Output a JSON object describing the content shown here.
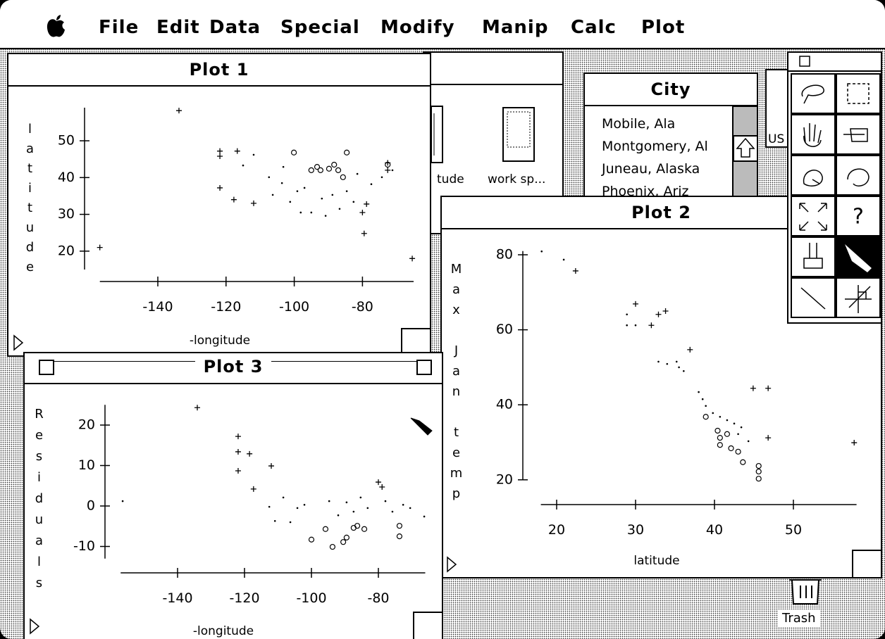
{
  "menu": [
    "File",
    "Edit",
    "Data",
    "Special",
    "Modify",
    "Manip",
    "Calc",
    "Plot"
  ],
  "background_window": {
    "icons": [
      "tude",
      "work sp..."
    ]
  },
  "city_window": {
    "title": "City",
    "items": [
      "Mobile, Ala",
      "Montgomery, Al",
      "Juneau, Alaska",
      "Phoenix, Ariz"
    ]
  },
  "us_window": {
    "label": "US"
  },
  "palette": {
    "help": "?"
  },
  "trash": "Trash",
  "chart_data": [
    {
      "type": "scatter",
      "title": "Plot 1",
      "x_label": "-longitude",
      "y_label": "latitude",
      "xlim": [
        -157,
        -65
      ],
      "ylim": [
        15,
        59
      ],
      "xticks": [
        -140,
        -120,
        -100,
        -80
      ],
      "yticks": [
        20,
        30,
        40,
        50
      ],
      "series": [
        {
          "marker": "plus",
          "color": "#000000",
          "x": [
            -133.8,
            -121.8,
            -121.8,
            -116.7,
            -121.8,
            -117.7,
            -111.9,
            -78.8,
            -80,
            -79.5,
            -157,
            -65.4,
            -72.6,
            -72.6
          ],
          "values": [
            58.2,
            47.2,
            45.8,
            47.2,
            37.2,
            34,
            33,
            32.8,
            30.5,
            24.8,
            21,
            18,
            44,
            42
          ]
        },
        {
          "marker": "circle",
          "color": "#000000",
          "x": [
            -100.1,
            -95,
            -93.3,
            -92.3,
            -89.8,
            -88.3,
            -87.1,
            -85.7,
            -84.6,
            -72.6
          ],
          "values": [
            46.8,
            42,
            42.9,
            42,
            42.4,
            43.5,
            42,
            40.1,
            46.8,
            43.5
          ]
        },
        {
          "marker": "dot",
          "color": "#000000",
          "x": [
            -111.9,
            -115,
            -107.4,
            -103.2,
            -103.6,
            -99.1,
            -97,
            -91.9,
            -88.8,
            -84.6,
            -81.5,
            -77.4,
            -74.3,
            -71.2,
            -95,
            -90.8,
            -86.7,
            -82.6,
            -106.3,
            -101.2,
            -98.1
          ],
          "values": [
            46.2,
            43.3,
            40.1,
            42.9,
            38.5,
            36.3,
            37.2,
            34.3,
            35.3,
            36.3,
            41,
            38.2,
            40.1,
            42,
            30.5,
            29.6,
            31.5,
            33.4,
            35.3,
            33.4,
            30.5
          ]
        }
      ]
    },
    {
      "type": "scatter",
      "title": "Plot 2",
      "x_label": "latitude",
      "y_label": "Max Jan temp",
      "xlim": [
        18,
        58
      ],
      "ylim": [
        20,
        81
      ],
      "xticks": [
        20,
        30,
        40,
        50
      ],
      "yticks": [
        20,
        40,
        60,
        80
      ],
      "series": [
        {
          "marker": "plus",
          "color": "#000000",
          "x": [
            22.4,
            30,
            32,
            32.9,
            33.8,
            36.9,
            44.9,
            46.8,
            46.8,
            57.7
          ],
          "values": [
            75.7,
            66.9,
            61.2,
            64.1,
            65,
            54.7,
            44.4,
            44.4,
            31.2,
            29.9
          ]
        },
        {
          "marker": "dot",
          "color": "#000000",
          "x": [
            18.1,
            20.9,
            28.9,
            28.9,
            30,
            32.9,
            34,
            35.2,
            35.5,
            36.1,
            38,
            38.5,
            38.9,
            39.8,
            40.7,
            41.6,
            42.5,
            43.4,
            44.3,
            43
          ],
          "values": [
            80.9,
            78.7,
            64.1,
            61.2,
            61.2,
            51.5,
            50.9,
            51.5,
            50,
            49,
            43.4,
            41.5,
            39.7,
            37.8,
            36.8,
            35.9,
            35,
            34,
            30.3,
            32.2
          ]
        },
        {
          "marker": "circle",
          "color": "#000000",
          "x": [
            38.9,
            40.4,
            40.7,
            41.6,
            40.7,
            42.1,
            43,
            43.6,
            45.6,
            45.6,
            45.6
          ],
          "values": [
            36.8,
            33.1,
            31.2,
            32.2,
            29.3,
            28.4,
            27.5,
            24.7,
            23.7,
            20.3,
            22.2
          ]
        }
      ]
    },
    {
      "type": "scatter",
      "title": "Plot 3",
      "x_label": "-longitude",
      "y_label": "Residuals",
      "xlim": [
        -157,
        -66
      ],
      "ylim": [
        -13,
        25
      ],
      "xticks": [
        -140,
        -120,
        -100,
        -80
      ],
      "yticks": [
        -10,
        0,
        10,
        20
      ],
      "series": [
        {
          "marker": "plus",
          "color": "#000000",
          "x": [
            -134.1,
            -121.9,
            -121.9,
            -118.5,
            -121.9,
            -112,
            -117.3,
            -80,
            -78.9
          ],
          "values": [
            24.3,
            17.2,
            13.4,
            12.9,
            8.7,
            9.9,
            4.2,
            5.9,
            4.7
          ]
        },
        {
          "marker": "dot",
          "color": "#000000",
          "x": [
            -156.4,
            -112.6,
            -110.9,
            -104.2,
            -102.1,
            -94.7,
            -92,
            -89.5,
            -87.4,
            -85.3,
            -83.2,
            -77.9,
            -75.8,
            -72.6,
            -70.5,
            -66.3,
            -108.4,
            -106.3
          ],
          "values": [
            1.2,
            -0.2,
            -3.7,
            -0.5,
            0.3,
            1.2,
            -2.3,
            0.9,
            -1.4,
            2.1,
            -0.5,
            1.2,
            -1.4,
            0.3,
            -0.5,
            -2.6,
            2.1,
            -4
          ]
        },
        {
          "marker": "circle",
          "color": "#000000",
          "x": [
            -100,
            -95.8,
            -93.7,
            -90.5,
            -89.5,
            -87.4,
            -86.3,
            -84.2,
            -73.7,
            -73.7
          ],
          "values": [
            -8.3,
            -5.7,
            -10.1,
            -8.9,
            -7.8,
            -5.4,
            -4.9,
            -5.7,
            -4.9,
            -7.5
          ]
        }
      ]
    }
  ]
}
